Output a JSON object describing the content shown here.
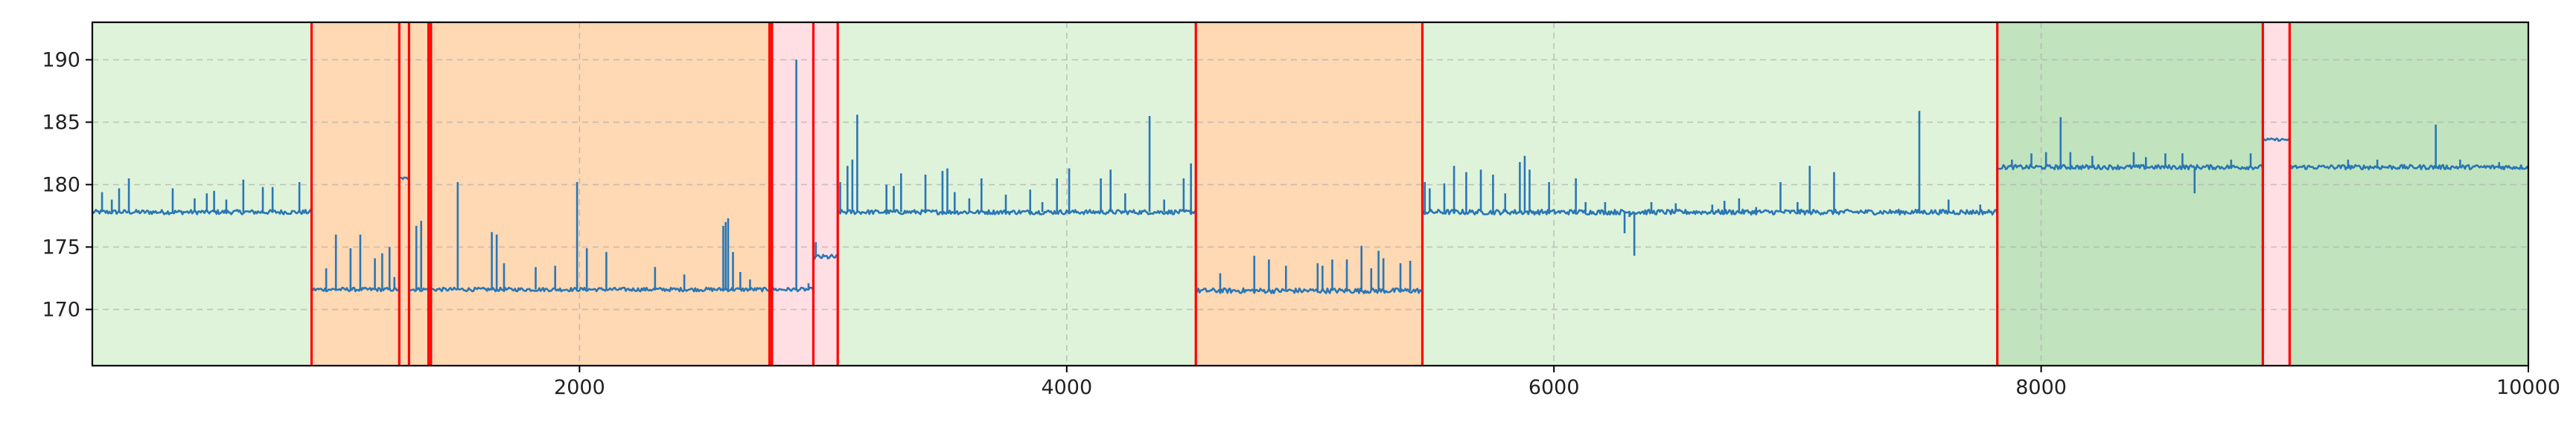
{
  "chart_data": {
    "type": "line",
    "title": "",
    "xlabel": "",
    "ylabel": "",
    "xlim": [
      0,
      10000
    ],
    "ylim": [
      165.5,
      193
    ],
    "grid": true,
    "x_ticks": [
      2000,
      4000,
      6000,
      8000,
      10000
    ],
    "y_ticks": [
      170,
      175,
      180,
      185,
      190
    ],
    "x_tick_labels": [
      "2000",
      "4000",
      "6000",
      "8000",
      "10000"
    ],
    "y_tick_labels": [
      "170",
      "175",
      "180",
      "185",
      "190"
    ],
    "colors": {
      "line": "#2a77b4",
      "change_line": "#ff0000",
      "grid": "#b0b0b0",
      "regime_light_green": "#dff3da",
      "regime_dark_green": "#c1e3be",
      "regime_orange": "#ffd8b4",
      "regime_pink": "#ffdfe3"
    },
    "regimes": [
      {
        "start": 0,
        "end": 900,
        "color": "regime_light_green"
      },
      {
        "start": 900,
        "end": 2790,
        "color": "regime_orange"
      },
      {
        "start": 2790,
        "end": 3060,
        "color": "regime_pink"
      },
      {
        "start": 3060,
        "end": 4530,
        "color": "regime_light_green"
      },
      {
        "start": 4530,
        "end": 5460,
        "color": "regime_orange"
      },
      {
        "start": 5460,
        "end": 7820,
        "color": "regime_light_green"
      },
      {
        "start": 7820,
        "end": 8910,
        "color": "regime_dark_green"
      },
      {
        "start": 8910,
        "end": 9020,
        "color": "regime_pink"
      },
      {
        "start": 9020,
        "end": 10000,
        "color": "regime_dark_green"
      }
    ],
    "change_points": [
      900,
      1260,
      1300,
      1380,
      1390,
      2780,
      2790,
      2960,
      3060,
      4530,
      5460,
      7820,
      8910,
      9020
    ],
    "series": [
      {
        "segments": [
          {
            "start": 0,
            "end": 900,
            "level": 177.8,
            "noise": 0.18
          },
          {
            "start": 900,
            "end": 1260,
            "level": 171.6,
            "noise": 0.15
          },
          {
            "start": 1260,
            "end": 1300,
            "level": 180.5,
            "noise": 0.1
          },
          {
            "start": 1300,
            "end": 2960,
            "level": 171.6,
            "noise": 0.15
          },
          {
            "start": 2960,
            "end": 3060,
            "level": 174.2,
            "noise": 0.2
          },
          {
            "start": 3060,
            "end": 4530,
            "level": 177.8,
            "noise": 0.18
          },
          {
            "start": 4530,
            "end": 5460,
            "level": 171.5,
            "noise": 0.2
          },
          {
            "start": 5460,
            "end": 7820,
            "level": 177.8,
            "noise": 0.2
          },
          {
            "start": 7820,
            "end": 8910,
            "level": 181.4,
            "noise": 0.18
          },
          {
            "start": 8910,
            "end": 9020,
            "level": 183.6,
            "noise": 0.1
          },
          {
            "start": 9020,
            "end": 10000,
            "level": 181.4,
            "noise": 0.18
          }
        ],
        "spikes": [
          [
            40,
            179.4
          ],
          [
            80,
            178.8
          ],
          [
            110,
            179.7
          ],
          [
            150,
            180.5
          ],
          [
            330,
            179.7
          ],
          [
            420,
            178.9
          ],
          [
            470,
            179.3
          ],
          [
            500,
            179.5
          ],
          [
            550,
            178.8
          ],
          [
            620,
            180.4
          ],
          [
            700,
            179.8
          ],
          [
            740,
            179.8
          ],
          [
            850,
            180.2
          ],
          [
            960,
            173.3
          ],
          [
            1000,
            176.0
          ],
          [
            1060,
            174.9
          ],
          [
            1100,
            176.0
          ],
          [
            1160,
            174.1
          ],
          [
            1190,
            174.5
          ],
          [
            1220,
            175.0
          ],
          [
            1240,
            172.6
          ],
          [
            1330,
            176.7
          ],
          [
            1350,
            177.1
          ],
          [
            1500,
            180.2
          ],
          [
            1640,
            176.2
          ],
          [
            1660,
            176.0
          ],
          [
            1690,
            173.7
          ],
          [
            1820,
            173.4
          ],
          [
            1900,
            173.5
          ],
          [
            1990,
            180.2
          ],
          [
            2030,
            174.9
          ],
          [
            2110,
            174.6
          ],
          [
            2310,
            173.4
          ],
          [
            2430,
            172.8
          ],
          [
            2590,
            176.7
          ],
          [
            2600,
            177.0
          ],
          [
            2610,
            177.3
          ],
          [
            2630,
            174.6
          ],
          [
            2660,
            173.0
          ],
          [
            2700,
            172.4
          ],
          [
            2890,
            190.0
          ],
          [
            2940,
            172.1
          ],
          [
            2970,
            175.4
          ],
          [
            3070,
            180.2
          ],
          [
            3100,
            181.5
          ],
          [
            3120,
            182.0
          ],
          [
            3140,
            185.6
          ],
          [
            3260,
            180.0
          ],
          [
            3290,
            179.9
          ],
          [
            3320,
            180.9
          ],
          [
            3420,
            180.8
          ],
          [
            3490,
            181.1
          ],
          [
            3510,
            181.3
          ],
          [
            3540,
            179.4
          ],
          [
            3600,
            178.9
          ],
          [
            3650,
            180.5
          ],
          [
            3750,
            179.2
          ],
          [
            3850,
            179.6
          ],
          [
            3900,
            178.6
          ],
          [
            3960,
            180.5
          ],
          [
            4010,
            181.3
          ],
          [
            4140,
            180.5
          ],
          [
            4180,
            181.2
          ],
          [
            4240,
            179.3
          ],
          [
            4340,
            185.5
          ],
          [
            4400,
            178.8
          ],
          [
            4480,
            180.5
          ],
          [
            4510,
            181.7
          ],
          [
            4630,
            172.9
          ],
          [
            4770,
            174.3
          ],
          [
            4830,
            174.0
          ],
          [
            4900,
            173.5
          ],
          [
            5030,
            173.7
          ],
          [
            5050,
            173.5
          ],
          [
            5090,
            174.0
          ],
          [
            5150,
            174.0
          ],
          [
            5210,
            175.1
          ],
          [
            5250,
            173.3
          ],
          [
            5280,
            174.7
          ],
          [
            5300,
            174.1
          ],
          [
            5370,
            173.7
          ],
          [
            5410,
            173.9
          ],
          [
            5470,
            180.2
          ],
          [
            5490,
            179.7
          ],
          [
            5550,
            180.1
          ],
          [
            5590,
            181.5
          ],
          [
            5640,
            181.0
          ],
          [
            5700,
            181.2
          ],
          [
            5750,
            180.8
          ],
          [
            5800,
            179.3
          ],
          [
            5860,
            181.8
          ],
          [
            5880,
            182.3
          ],
          [
            5900,
            181.2
          ],
          [
            5980,
            180.2
          ],
          [
            6090,
            180.5
          ],
          [
            6130,
            178.6
          ],
          [
            6210,
            178.6
          ],
          [
            6260,
            177.9
          ],
          [
            6290,
            176.1
          ],
          [
            6310,
            177.4
          ],
          [
            6330,
            174.3
          ],
          [
            6400,
            178.6
          ],
          [
            6500,
            178.5
          ],
          [
            6650,
            178.4
          ],
          [
            6700,
            178.7
          ],
          [
            6760,
            178.9
          ],
          [
            6830,
            178.2
          ],
          [
            6930,
            180.2
          ],
          [
            7000,
            178.6
          ],
          [
            7050,
            181.5
          ],
          [
            7150,
            181.0
          ],
          [
            7260,
            178.0
          ],
          [
            7500,
            185.9
          ],
          [
            7620,
            178.8
          ],
          [
            7750,
            178.4
          ],
          [
            7820,
            184.5
          ],
          [
            7880,
            182.0
          ],
          [
            7960,
            182.5
          ],
          [
            8020,
            182.6
          ],
          [
            8080,
            185.4
          ],
          [
            8120,
            182.6
          ],
          [
            8210,
            182.3
          ],
          [
            8380,
            182.6
          ],
          [
            8430,
            182.2
          ],
          [
            8510,
            182.5
          ],
          [
            8580,
            182.5
          ],
          [
            8630,
            179.3
          ],
          [
            8780,
            182.0
          ],
          [
            8860,
            182.5
          ],
          [
            9260,
            182.0
          ],
          [
            9380,
            182.0
          ],
          [
            9620,
            184.8
          ],
          [
            9720,
            182.0
          ],
          [
            9880,
            181.8
          ]
        ]
      }
    ]
  }
}
